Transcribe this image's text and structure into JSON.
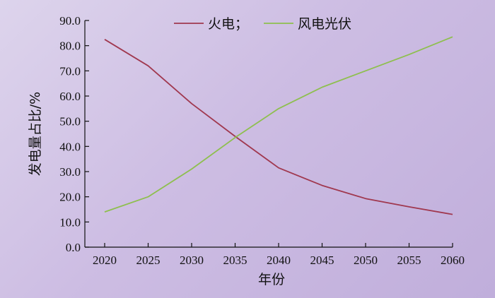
{
  "chart_data": {
    "type": "line",
    "title": "",
    "xlabel": "年份",
    "ylabel": "发电量占比/%",
    "x": [
      2020,
      2025,
      2030,
      2035,
      2040,
      2045,
      2050,
      2055,
      2060
    ],
    "xticks": [
      "2020",
      "2025",
      "2030",
      "2035",
      "2040",
      "2045",
      "2050",
      "2055",
      "2060"
    ],
    "yticks": [
      "0.0",
      "10.0",
      "20.0",
      "30.0",
      "40.0",
      "50.0",
      "60.0",
      "70.0",
      "80.0",
      "90.0"
    ],
    "ylim": [
      0,
      90
    ],
    "grid": false,
    "legend_position": "top",
    "series": [
      {
        "name": "火电；",
        "color": "#a0384f",
        "values": [
          82.5,
          72.0,
          57.0,
          44.0,
          31.5,
          24.5,
          19.3,
          16.0,
          13.0
        ]
      },
      {
        "name": "风电光伏",
        "color": "#8ebf4e",
        "values": [
          14.0,
          20.0,
          31.0,
          43.5,
          55.0,
          63.5,
          70.0,
          76.5,
          83.5
        ]
      }
    ]
  }
}
